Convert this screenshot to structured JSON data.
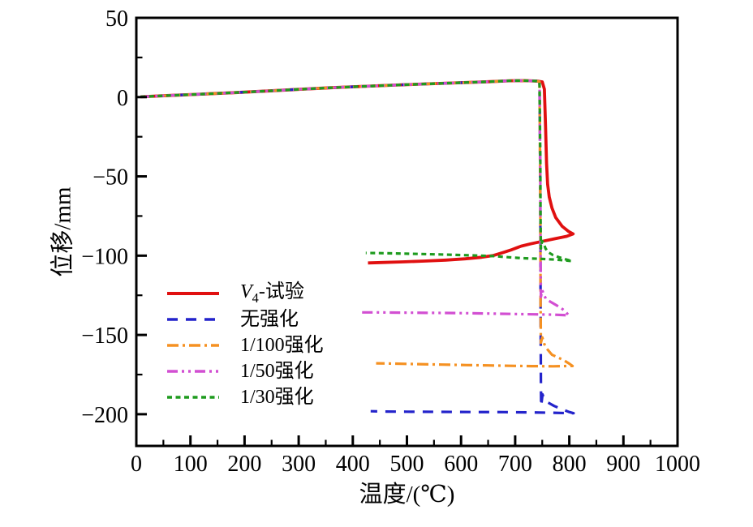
{
  "figure": {
    "background": "#ffffff",
    "text_color": "#000000",
    "frame_color": "#000000"
  },
  "chart_data": {
    "type": "line",
    "title": "",
    "xlabel": "温度/(℃)",
    "ylabel": "位移/mm",
    "xlim": [
      0,
      1000
    ],
    "ylim": [
      -220,
      50
    ],
    "grid": "off",
    "legend_position": "inside-middle-left",
    "x_major_ticks": [
      0,
      100,
      200,
      300,
      400,
      500,
      600,
      700,
      800,
      900,
      1000
    ],
    "x_minor_ticks": [
      50,
      150,
      250,
      350,
      450,
      550,
      650,
      750,
      850,
      950
    ],
    "y_major_ticks": [
      50,
      0,
      -50,
      -100,
      -150,
      -200
    ],
    "y_minor_ticks": [
      25,
      -25,
      -75,
      -125,
      -175
    ],
    "common_heating_path": [
      [
        8,
        0.2
      ],
      [
        60,
        1.0
      ],
      [
        120,
        1.9
      ],
      [
        180,
        2.8
      ],
      [
        240,
        3.8
      ],
      [
        300,
        4.9
      ],
      [
        360,
        5.9
      ],
      [
        420,
        6.8
      ],
      [
        480,
        7.6
      ],
      [
        540,
        8.4
      ],
      [
        600,
        9.1
      ],
      [
        650,
        9.7
      ],
      [
        690,
        10.3
      ],
      [
        715,
        10.4
      ],
      [
        740,
        10.1
      ]
    ],
    "series": [
      {
        "name": "v4-experiment",
        "label": "V4-试验",
        "label_parts": {
          "pre_italic": "V",
          "sub": "4",
          "post": "-试验"
        },
        "color": "#e01010",
        "style": "solid",
        "dash": "",
        "width": 3.8,
        "points": [
          [
            750,
            9.6
          ],
          [
            754,
            5
          ],
          [
            756,
            -18
          ],
          [
            758,
            -42
          ],
          [
            760,
            -55
          ],
          [
            763,
            -63
          ],
          [
            768,
            -70
          ],
          [
            775,
            -76
          ],
          [
            787,
            -81.5
          ],
          [
            799,
            -84.8
          ],
          [
            807,
            -86.3
          ],
          [
            795,
            -87.8
          ],
          [
            772,
            -89.4
          ],
          [
            750,
            -91
          ],
          [
            729,
            -92.5
          ],
          [
            711,
            -94
          ],
          [
            694,
            -96.2
          ],
          [
            676,
            -98.2
          ],
          [
            660,
            -99.9
          ],
          [
            638,
            -101
          ],
          [
            608,
            -102
          ],
          [
            572,
            -102.8
          ],
          [
            532,
            -103.4
          ],
          [
            492,
            -103.9
          ],
          [
            458,
            -104.3
          ],
          [
            428,
            -104.6
          ]
        ]
      },
      {
        "name": "no-reinforcement",
        "label": "无强化",
        "color": "#2323cb",
        "style": "dashed",
        "dash": "13 10",
        "width": 3.2,
        "points": [
          [
            745,
            9.7
          ],
          [
            746.5,
            -60
          ],
          [
            747,
            -130
          ],
          [
            747.5,
            -178
          ],
          [
            748,
            -195
          ],
          [
            750.5,
            -187.5
          ],
          [
            754,
            -190.5
          ],
          [
            760,
            -192.5
          ],
          [
            772,
            -194.8
          ],
          [
            786,
            -196.8
          ],
          [
            800,
            -198.6
          ],
          [
            808,
            -199.4
          ],
          [
            770,
            -199.1
          ],
          [
            730,
            -198.9
          ],
          [
            680,
            -198.7
          ],
          [
            620,
            -198.6
          ],
          [
            560,
            -198.5
          ],
          [
            500,
            -198.4
          ],
          [
            462,
            -198.3
          ],
          [
            433,
            -198.1
          ]
        ]
      },
      {
        "name": "reinforcement-1-100",
        "label": "1/100强化",
        "color": "#f59122",
        "style": "dashdot",
        "dash": "14 5 3 5",
        "width": 3.2,
        "points": [
          [
            745,
            9.7
          ],
          [
            746.5,
            -70
          ],
          [
            747,
            -130
          ],
          [
            747.5,
            -155
          ],
          [
            750,
            -151.5
          ],
          [
            753.5,
            -155.5
          ],
          [
            758,
            -158.5
          ],
          [
            768,
            -162.5
          ],
          [
            779,
            -164.2
          ],
          [
            789,
            -165.8
          ],
          [
            799,
            -167.9
          ],
          [
            806,
            -169.6
          ],
          [
            770,
            -169.8
          ],
          [
            730,
            -169.7
          ],
          [
            690,
            -169.5
          ],
          [
            650,
            -169.2
          ],
          [
            610,
            -169.0
          ],
          [
            565,
            -168.7
          ],
          [
            520,
            -168.4
          ],
          [
            478,
            -168.1
          ],
          [
            443,
            -167.9
          ]
        ]
      },
      {
        "name": "reinforcement-1-50",
        "label": "1/50强化",
        "color": "#d24fd2",
        "style": "dashdotdot",
        "dash": "13 5 3 5 3 5",
        "width": 3.2,
        "points": [
          [
            745,
            9.7
          ],
          [
            746.5,
            -50
          ],
          [
            747,
            -100
          ],
          [
            747.5,
            -126
          ],
          [
            750,
            -121.8
          ],
          [
            753,
            -124.8
          ],
          [
            757,
            -127.2
          ],
          [
            764,
            -128.8
          ],
          [
            773,
            -130.6
          ],
          [
            784,
            -132.8
          ],
          [
            792,
            -135
          ],
          [
            799,
            -137.6
          ],
          [
            770,
            -137.2
          ],
          [
            735,
            -137.0
          ],
          [
            700,
            -136.8
          ],
          [
            665,
            -136.6
          ],
          [
            630,
            -136.4
          ],
          [
            590,
            -136.2
          ],
          [
            550,
            -136.1
          ],
          [
            510,
            -136.0
          ],
          [
            470,
            -135.9
          ],
          [
            440,
            -135.8
          ],
          [
            414,
            -135.8
          ]
        ]
      },
      {
        "name": "reinforcement-1-30",
        "label": "1/30强化",
        "color": "#1e9b1e",
        "style": "dotted",
        "dash": "6 4.5",
        "width": 3.2,
        "points": [
          [
            745,
            9.7
          ],
          [
            746.5,
            -40
          ],
          [
            747,
            -80
          ],
          [
            747.5,
            -95.5
          ],
          [
            749.5,
            -90.8
          ],
          [
            752,
            -91.5
          ],
          [
            756,
            -95.5
          ],
          [
            761,
            -97.8
          ],
          [
            770,
            -99.7
          ],
          [
            781,
            -101
          ],
          [
            793,
            -102.3
          ],
          [
            805,
            -103.4
          ],
          [
            775,
            -102.5
          ],
          [
            745,
            -102.0
          ],
          [
            715,
            -101.6
          ],
          [
            688,
            -101.0
          ],
          [
            662,
            -100.3
          ],
          [
            635,
            -100.0
          ],
          [
            600,
            -99.6
          ],
          [
            560,
            -99.2
          ],
          [
            520,
            -98.9
          ],
          [
            480,
            -98.6
          ],
          [
            448,
            -98.4
          ],
          [
            424,
            -98.3
          ]
        ]
      }
    ]
  }
}
